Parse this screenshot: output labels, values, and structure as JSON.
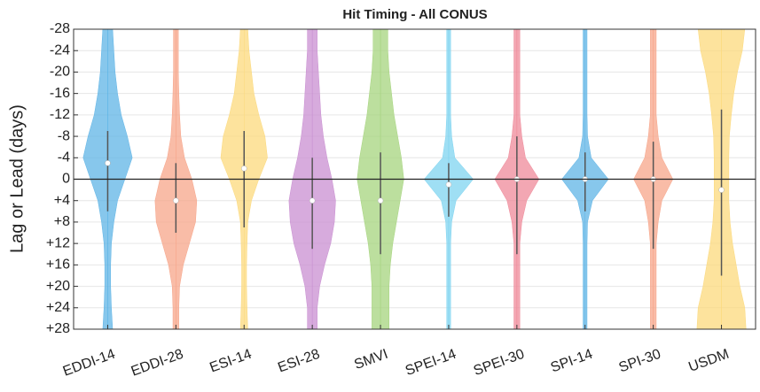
{
  "chart_data": {
    "type": "violin",
    "title": "Hit Timing - All CONUS",
    "y_label": "Lag or Lead (days)",
    "categories": [
      "EDDI-14",
      "EDDI-28",
      "ESI-14",
      "ESI-28",
      "SMVI",
      "SPEI-14",
      "SPEI-30",
      "SPI-14",
      "SPI-30",
      "USDM"
    ],
    "ylim": [
      -28,
      28
    ],
    "y_reversed": true,
    "yticks": [
      -28,
      -24,
      -20,
      -16,
      -12,
      -8,
      -4,
      0,
      {
        "value": 4,
        "label": "+4"
      },
      {
        "value": 8,
        "label": "+8"
      },
      {
        "value": 12,
        "label": "+12"
      },
      {
        "value": 16,
        "label": "+16"
      },
      {
        "value": 20,
        "label": "+20"
      },
      {
        "value": 24,
        "label": "+24"
      },
      {
        "value": 28,
        "label": "+28"
      }
    ],
    "grid": true,
    "reference_line": 0,
    "density_y": [
      -28,
      -24,
      -20,
      -16,
      -12,
      -8,
      -4,
      0,
      4,
      8,
      12,
      16,
      20,
      24,
      28
    ],
    "violins": [
      {
        "color": "#5fb4e6",
        "median": -3,
        "whisker": [
          -9,
          6
        ],
        "density": [
          0.2,
          0.25,
          0.3,
          0.4,
          0.55,
          0.8,
          1.0,
          0.7,
          0.4,
          0.25,
          0.15,
          0.12,
          0.12,
          0.15,
          0.2
        ]
      },
      {
        "color": "#f7a58a",
        "median": 4,
        "whisker": [
          -3,
          10
        ],
        "density": [
          0.1,
          0.1,
          0.1,
          0.12,
          0.15,
          0.2,
          0.35,
          0.65,
          0.85,
          0.8,
          0.55,
          0.3,
          0.15,
          0.12,
          0.12
        ]
      },
      {
        "color": "#fcd97c",
        "median": -2,
        "whisker": [
          -9,
          9
        ],
        "density": [
          0.15,
          0.2,
          0.3,
          0.4,
          0.6,
          0.85,
          0.95,
          0.6,
          0.3,
          0.15,
          0.12,
          0.1,
          0.1,
          0.12,
          0.15
        ]
      },
      {
        "color": "#c98fd1",
        "median": 4,
        "whisker": [
          -4,
          13
        ],
        "density": [
          0.2,
          0.2,
          0.25,
          0.3,
          0.35,
          0.45,
          0.6,
          0.8,
          0.95,
          0.9,
          0.75,
          0.5,
          0.3,
          0.2,
          0.2
        ]
      },
      {
        "color": "#a6d47e",
        "median": 4,
        "whisker": [
          -5,
          14
        ],
        "density": [
          0.3,
          0.3,
          0.35,
          0.45,
          0.55,
          0.7,
          0.85,
          0.95,
          0.8,
          0.65,
          0.5,
          0.4,
          0.35,
          0.35,
          0.35
        ]
      },
      {
        "color": "#7fd4f0",
        "median": 1,
        "whisker": [
          -3,
          7
        ],
        "density": [
          0.08,
          0.08,
          0.08,
          0.08,
          0.08,
          0.12,
          0.25,
          1.0,
          0.3,
          0.12,
          0.08,
          0.08,
          0.08,
          0.08,
          0.08
        ]
      },
      {
        "color": "#ef8a9a",
        "median": 0,
        "whisker": [
          -8,
          14
        ],
        "density": [
          0.12,
          0.12,
          0.12,
          0.12,
          0.12,
          0.2,
          0.35,
          0.9,
          0.4,
          0.2,
          0.12,
          0.12,
          0.12,
          0.12,
          0.12
        ]
      },
      {
        "color": "#5fb4e6",
        "median": 0,
        "whisker": [
          -5,
          6
        ],
        "density": [
          0.08,
          0.08,
          0.08,
          0.08,
          0.08,
          0.1,
          0.25,
          0.95,
          0.3,
          0.1,
          0.08,
          0.08,
          0.08,
          0.08,
          0.08
        ]
      },
      {
        "color": "#f7a58a",
        "median": 0,
        "whisker": [
          -7,
          13
        ],
        "density": [
          0.12,
          0.12,
          0.12,
          0.12,
          0.12,
          0.2,
          0.35,
          0.8,
          0.35,
          0.2,
          0.12,
          0.12,
          0.12,
          0.12,
          0.12
        ]
      },
      {
        "color": "#fcd97c",
        "median": 2,
        "whisker": [
          -13,
          18
        ],
        "density": [
          0.95,
          0.85,
          0.65,
          0.5,
          0.4,
          0.32,
          0.3,
          0.3,
          0.3,
          0.35,
          0.45,
          0.6,
          0.75,
          0.95,
          1.0
        ]
      }
    ]
  }
}
